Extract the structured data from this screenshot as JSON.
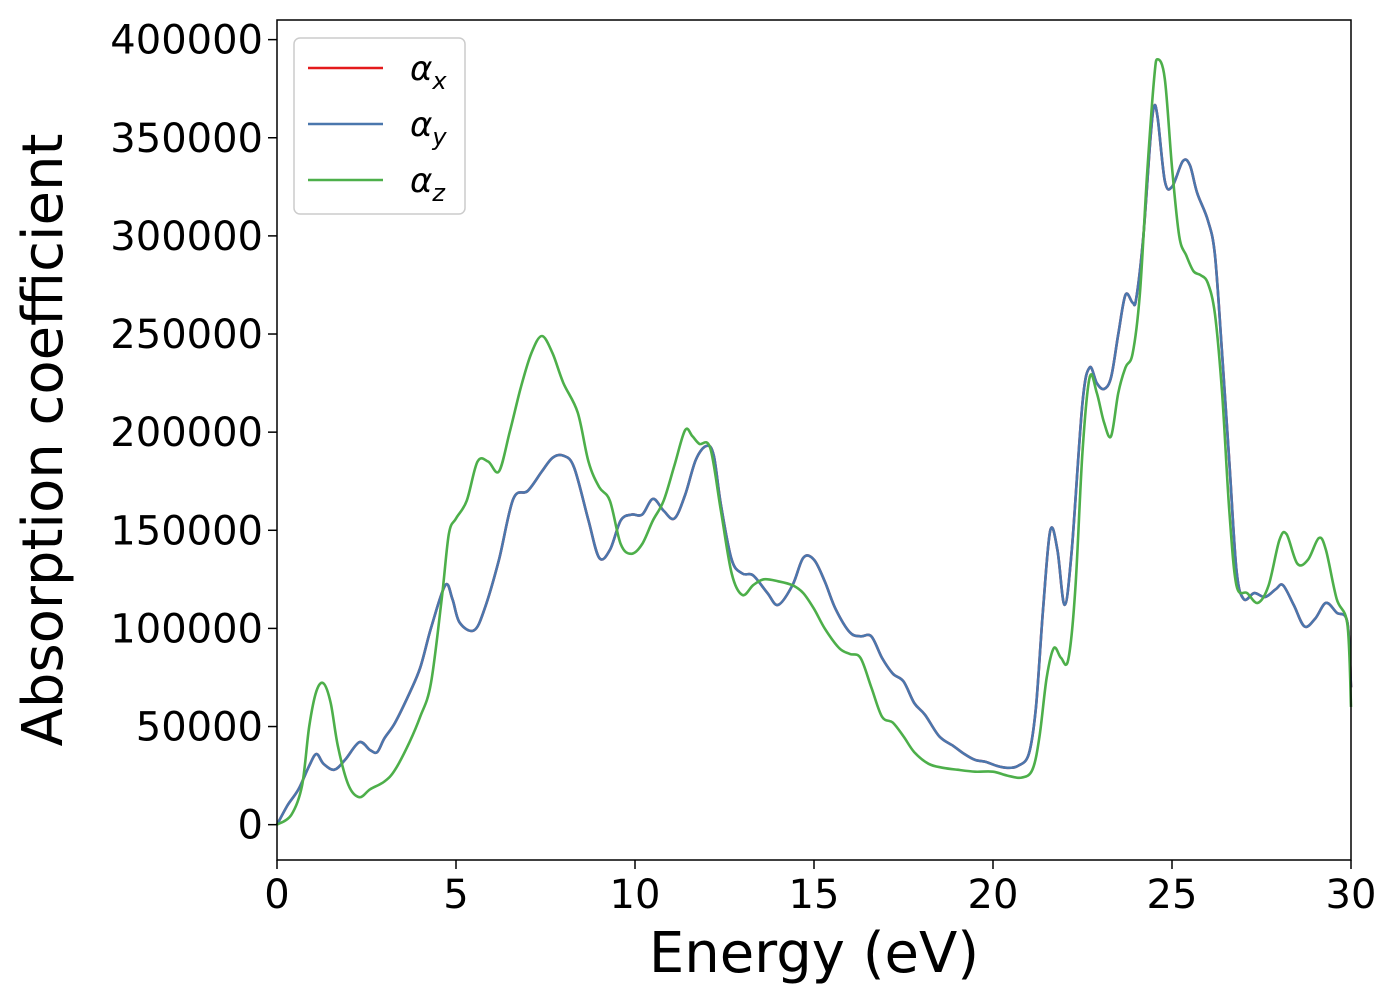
{
  "chart_data": {
    "type": "line",
    "title": "",
    "xlabel": "Energy (eV)",
    "ylabel": "Absorption coefficient",
    "xlim": [
      0,
      30
    ],
    "ylim": [
      -18000,
      410000
    ],
    "xticks": [
      0,
      5,
      10,
      15,
      20,
      25,
      30
    ],
    "yticks": [
      0,
      50000,
      100000,
      150000,
      200000,
      250000,
      300000,
      350000,
      400000
    ],
    "xtick_labels": [
      "0",
      "5",
      "10",
      "15",
      "20",
      "25",
      "30"
    ],
    "ytick_labels": [
      "0",
      "50000",
      "100000",
      "150000",
      "200000",
      "250000",
      "300000",
      "350000",
      "400000"
    ],
    "grid": false,
    "legend_position": "top-left",
    "series": [
      {
        "name": "α_x",
        "legend_base": "α",
        "legend_sub": "x",
        "color": "#e41a1c",
        "x": [
          0,
          0.3,
          0.6,
          0.9,
          1.1,
          1.3,
          1.6,
          1.9,
          2.3,
          2.6,
          2.8,
          3.0,
          3.3,
          3.7,
          4.0,
          4.3,
          4.7,
          4.9,
          5.1,
          5.5,
          5.8,
          6.2,
          6.6,
          7.0,
          7.4,
          7.7,
          8.0,
          8.3,
          8.7,
          9.0,
          9.3,
          9.6,
          9.9,
          10.2,
          10.5,
          10.8,
          11.1,
          11.4,
          11.7,
          12.0,
          12.2,
          12.4,
          12.7,
          13.0,
          13.3,
          13.7,
          14.0,
          14.4,
          14.7,
          15.0,
          15.3,
          15.6,
          16.0,
          16.3,
          16.6,
          16.9,
          17.2,
          17.5,
          17.8,
          18.1,
          18.5,
          18.9,
          19.2,
          19.5,
          19.8,
          20.1,
          20.4,
          20.7,
          21.0,
          21.2,
          21.4,
          21.6,
          21.8,
          22.0,
          22.2,
          22.5,
          22.7,
          22.9,
          23.1,
          23.3,
          23.5,
          23.7,
          23.9,
          24.0,
          24.2,
          24.4,
          24.5,
          24.6,
          24.8,
          25.0,
          25.3,
          25.5,
          25.7,
          26.0,
          26.2,
          26.4,
          26.6,
          26.8,
          27.0,
          27.3,
          27.6,
          27.9,
          28.1,
          28.4,
          28.7,
          29.0,
          29.3,
          29.6,
          29.9,
          30.0
        ],
        "y": [
          0,
          10000,
          18000,
          30000,
          36000,
          31000,
          28000,
          33000,
          42000,
          38000,
          37000,
          44000,
          52000,
          67000,
          80000,
          100000,
          122000,
          115000,
          103000,
          99000,
          110000,
          135000,
          166000,
          170000,
          180000,
          187000,
          188000,
          182000,
          155000,
          136000,
          140000,
          155000,
          158000,
          158000,
          166000,
          160000,
          156000,
          168000,
          186000,
          193000,
          188000,
          163000,
          135000,
          128000,
          127000,
          118000,
          112000,
          122000,
          136000,
          135000,
          124000,
          110000,
          98000,
          96000,
          96000,
          85000,
          77000,
          73000,
          62000,
          56000,
          45000,
          40000,
          36000,
          33000,
          32000,
          30000,
          29000,
          30000,
          36000,
          60000,
          110000,
          150000,
          140000,
          112000,
          140000,
          215000,
          233000,
          225000,
          222000,
          228000,
          250000,
          270000,
          266000,
          268000,
          300000,
          350000,
          366000,
          360000,
          328000,
          325000,
          338000,
          336000,
          322000,
          308000,
          290000,
          240000,
          185000,
          130000,
          115000,
          118000,
          116000,
          120000,
          122000,
          112000,
          101000,
          105000,
          113000,
          108000,
          103000,
          70000
        ]
      },
      {
        "name": "α_y",
        "legend_base": "α",
        "legend_sub": "y",
        "color": "#4a77ad",
        "x": [
          0,
          0.3,
          0.6,
          0.9,
          1.1,
          1.3,
          1.6,
          1.9,
          2.3,
          2.6,
          2.8,
          3.0,
          3.3,
          3.7,
          4.0,
          4.3,
          4.7,
          4.9,
          5.1,
          5.5,
          5.8,
          6.2,
          6.6,
          7.0,
          7.4,
          7.7,
          8.0,
          8.3,
          8.7,
          9.0,
          9.3,
          9.6,
          9.9,
          10.2,
          10.5,
          10.8,
          11.1,
          11.4,
          11.7,
          12.0,
          12.2,
          12.4,
          12.7,
          13.0,
          13.3,
          13.7,
          14.0,
          14.4,
          14.7,
          15.0,
          15.3,
          15.6,
          16.0,
          16.3,
          16.6,
          16.9,
          17.2,
          17.5,
          17.8,
          18.1,
          18.5,
          18.9,
          19.2,
          19.5,
          19.8,
          20.1,
          20.4,
          20.7,
          21.0,
          21.2,
          21.4,
          21.6,
          21.8,
          22.0,
          22.2,
          22.5,
          22.7,
          22.9,
          23.1,
          23.3,
          23.5,
          23.7,
          23.9,
          24.0,
          24.2,
          24.4,
          24.5,
          24.6,
          24.8,
          25.0,
          25.3,
          25.5,
          25.7,
          26.0,
          26.2,
          26.4,
          26.6,
          26.8,
          27.0,
          27.3,
          27.6,
          27.9,
          28.1,
          28.4,
          28.7,
          29.0,
          29.3,
          29.6,
          29.9,
          30.0
        ],
        "y": [
          0,
          10000,
          18000,
          30000,
          36000,
          31000,
          28000,
          33000,
          42000,
          38000,
          37000,
          44000,
          52000,
          67000,
          80000,
          100000,
          122000,
          115000,
          103000,
          99000,
          110000,
          135000,
          166000,
          170000,
          180000,
          187000,
          188000,
          182000,
          155000,
          136000,
          140000,
          155000,
          158000,
          158000,
          166000,
          160000,
          156000,
          168000,
          186000,
          193000,
          188000,
          163000,
          135000,
          128000,
          127000,
          118000,
          112000,
          122000,
          136000,
          135000,
          124000,
          110000,
          98000,
          96000,
          96000,
          85000,
          77000,
          73000,
          62000,
          56000,
          45000,
          40000,
          36000,
          33000,
          32000,
          30000,
          29000,
          30000,
          36000,
          60000,
          110000,
          150000,
          140000,
          112000,
          140000,
          215000,
          233000,
          225000,
          222000,
          228000,
          250000,
          270000,
          266000,
          268000,
          300000,
          350000,
          366000,
          360000,
          328000,
          325000,
          338000,
          336000,
          322000,
          308000,
          290000,
          240000,
          185000,
          130000,
          115000,
          118000,
          116000,
          120000,
          122000,
          112000,
          101000,
          105000,
          113000,
          108000,
          103000,
          70000
        ]
      },
      {
        "name": "α_z",
        "legend_base": "α",
        "legend_sub": "z",
        "color": "#4daf4a",
        "x": [
          0,
          0.4,
          0.7,
          0.9,
          1.1,
          1.3,
          1.5,
          1.7,
          2.0,
          2.3,
          2.6,
          3.0,
          3.3,
          3.7,
          4.0,
          4.3,
          4.6,
          4.8,
          5.0,
          5.3,
          5.6,
          5.9,
          6.2,
          6.5,
          6.8,
          7.1,
          7.4,
          7.7,
          8.0,
          8.4,
          8.7,
          9.0,
          9.3,
          9.6,
          9.9,
          10.2,
          10.5,
          10.8,
          11.1,
          11.4,
          11.6,
          11.8,
          12.1,
          12.4,
          12.7,
          13.0,
          13.3,
          13.6,
          14.0,
          14.4,
          14.7,
          15.0,
          15.3,
          15.7,
          16.0,
          16.3,
          16.6,
          16.9,
          17.2,
          17.5,
          17.8,
          18.2,
          18.6,
          19.0,
          19.5,
          20.0,
          20.4,
          20.8,
          21.1,
          21.3,
          21.5,
          21.7,
          21.9,
          22.1,
          22.3,
          22.5,
          22.7,
          22.9,
          23.1,
          23.3,
          23.5,
          23.7,
          23.9,
          24.1,
          24.3,
          24.5,
          24.6,
          24.8,
          25.0,
          25.2,
          25.4,
          25.6,
          25.8,
          26.0,
          26.2,
          26.4,
          26.6,
          26.8,
          27.1,
          27.4,
          27.7,
          28.0,
          28.2,
          28.5,
          28.8,
          29.1,
          29.3,
          29.6,
          29.9,
          30.0
        ],
        "y": [
          0,
          5000,
          20000,
          50000,
          68000,
          72000,
          62000,
          40000,
          20000,
          14000,
          18000,
          22000,
          28000,
          42000,
          55000,
          72000,
          115000,
          148000,
          156000,
          165000,
          185000,
          185000,
          180000,
          200000,
          222000,
          240000,
          249000,
          240000,
          225000,
          210000,
          185000,
          172000,
          165000,
          143000,
          138000,
          143000,
          155000,
          165000,
          183000,
          201000,
          198000,
          194000,
          192000,
          160000,
          128000,
          117000,
          122000,
          125000,
          124000,
          122000,
          118000,
          110000,
          100000,
          90000,
          87000,
          85000,
          70000,
          55000,
          52000,
          45000,
          37000,
          31000,
          29000,
          28000,
          27000,
          27000,
          25000,
          24000,
          28000,
          45000,
          75000,
          90000,
          85000,
          84000,
          120000,
          190000,
          228000,
          220000,
          205000,
          198000,
          220000,
          233000,
          240000,
          270000,
          330000,
          380000,
          390000,
          380000,
          335000,
          300000,
          290000,
          282000,
          280000,
          276000,
          260000,
          220000,
          160000,
          122000,
          118000,
          113000,
          122000,
          145000,
          148000,
          133000,
          135000,
          146000,
          140000,
          115000,
          102000,
          60000
        ]
      }
    ]
  }
}
